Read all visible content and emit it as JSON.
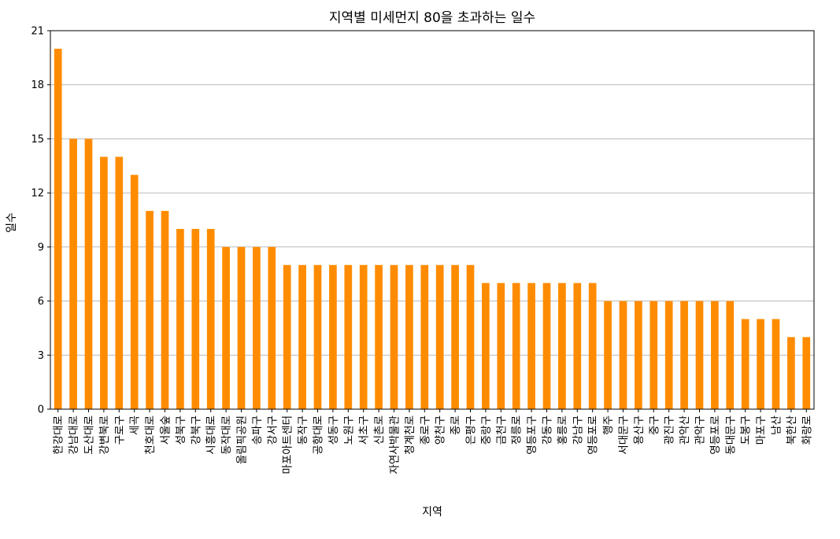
{
  "chart_data": {
    "type": "bar",
    "title": "지역별 미세먼지 80을 초과하는 일수",
    "xlabel": "지역",
    "ylabel": "일수",
    "ylim": [
      0,
      21
    ],
    "yticks": [
      0,
      3,
      6,
      9,
      12,
      15,
      18,
      21
    ],
    "grid": "y",
    "bar_color": "#ff8c00",
    "categories": [
      "한강대로",
      "강남대로",
      "도산대로",
      "강변북로",
      "구로구",
      "세곡",
      "천호대로",
      "서울숲",
      "성북구",
      "강북구",
      "시흥대로",
      "동작대로",
      "올림픽공원",
      "송파구",
      "강서구",
      "마포아트센터",
      "동작구",
      "공항대로",
      "성동구",
      "노원구",
      "서초구",
      "신촌로",
      "자연사박물관",
      "청계천로",
      "종로구",
      "양천구",
      "종로",
      "은평구",
      "중랑구",
      "금천구",
      "정릉로",
      "영등포구",
      "강동구",
      "홍릉로",
      "강남구",
      "영등포로",
      "행주",
      "서대문구",
      "용산구",
      "중구",
      "광진구",
      "관악산",
      "관악구",
      "영등포로",
      "동대문구",
      "도봉구",
      "마포구",
      "남산",
      "북한산",
      "화랑로"
    ],
    "values": [
      20,
      15,
      15,
      14,
      14,
      13,
      11,
      11,
      10,
      10,
      10,
      9,
      9,
      9,
      9,
      8,
      8,
      8,
      8,
      8,
      8,
      8,
      8,
      8,
      8,
      8,
      8,
      8,
      7,
      7,
      7,
      7,
      7,
      7,
      7,
      7,
      6,
      6,
      6,
      6,
      6,
      6,
      6,
      6,
      6,
      5,
      5,
      5,
      4,
      4
    ]
  }
}
